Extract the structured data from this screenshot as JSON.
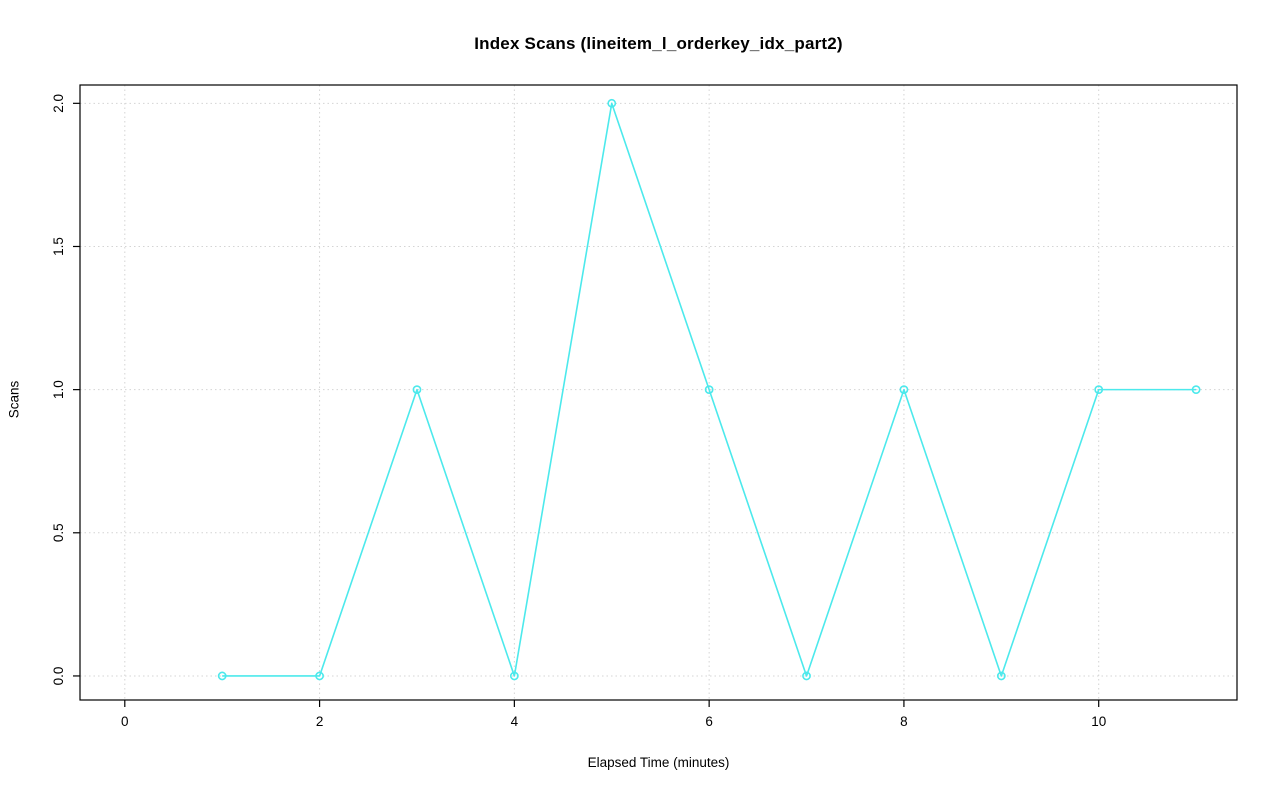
{
  "chart_data": {
    "type": "line",
    "title": "Index Scans (lineitem_l_orderkey_idx_part2)",
    "xlabel": "Elapsed Time (minutes)",
    "ylabel": "Scans",
    "x": [
      1,
      2,
      3,
      4,
      5,
      6,
      7,
      8,
      9,
      10,
      11
    ],
    "values": [
      0,
      0,
      1,
      0,
      2,
      1,
      0,
      1,
      0,
      1,
      1
    ],
    "series_name": "Index Scans",
    "xticks": [
      0,
      2,
      4,
      6,
      8,
      10
    ],
    "yticks": [
      0.0,
      0.5,
      1.0,
      1.5,
      2.0
    ],
    "ytick_labels": [
      "0.0",
      "0.5",
      "1.0",
      "1.5",
      "2.0"
    ],
    "xtick_labels": [
      "0",
      "2",
      "4",
      "6",
      "8",
      "10"
    ],
    "xlim": [
      -0.46,
      11.42
    ],
    "ylim": [
      -0.084,
      2.064
    ],
    "grid": "dotted",
    "legend_position": "none",
    "line_color": "#4ce9ec",
    "marker": "open-circle",
    "grid_color": "#d4d4d4",
    "box_color": "#000000"
  }
}
